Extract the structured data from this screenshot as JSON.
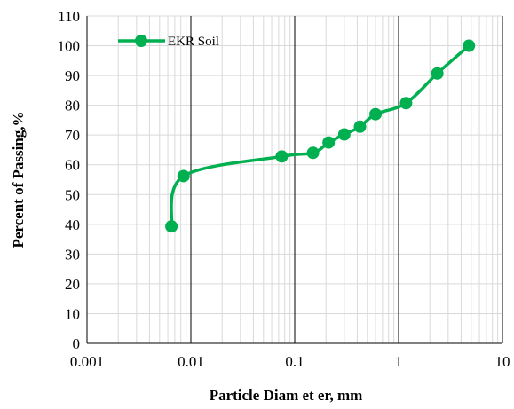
{
  "chart_data": {
    "type": "line",
    "xscale": "log",
    "xlim": [
      0.001,
      10
    ],
    "ylim": [
      0,
      110
    ],
    "xticks": [
      "0.001",
      "0.01",
      "0.1",
      "1",
      "10"
    ],
    "yticks": [
      "0",
      "10",
      "20",
      "30",
      "40",
      "50",
      "60",
      "70",
      "80",
      "90",
      "100",
      "110"
    ],
    "xlabel": "Particle Diam et er, mm",
    "ylabel": "Percent of Passing,%",
    "grid": true,
    "legend_position": "top-left",
    "series": [
      {
        "name": "EKR Soil",
        "color": "#00b050",
        "smooth": true,
        "x": [
          0.0065,
          0.0085,
          0.075,
          0.15,
          0.212,
          0.3,
          0.425,
          0.6,
          1.18,
          2.36,
          4.75
        ],
        "y": [
          39.3,
          56.2,
          62.8,
          64.0,
          67.5,
          70.2,
          72.8,
          77.0,
          80.7,
          90.7,
          100.0
        ]
      }
    ]
  }
}
